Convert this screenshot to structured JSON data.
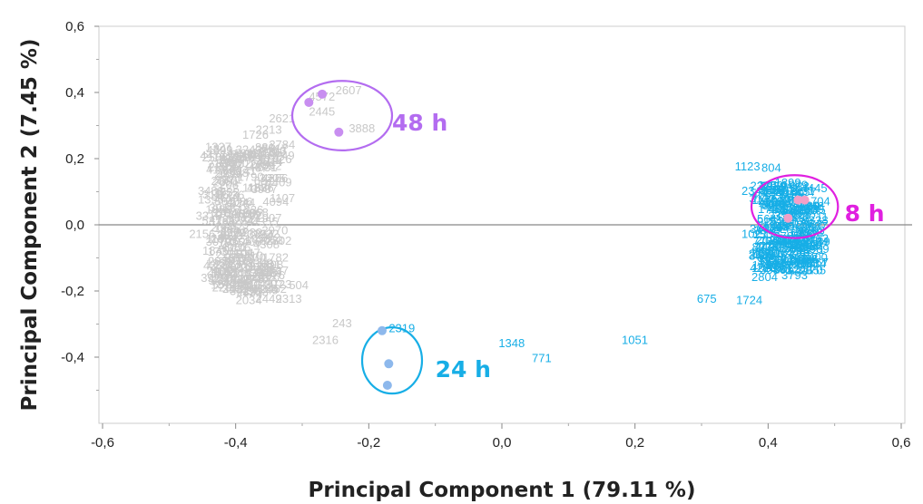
{
  "chart_data": {
    "type": "scatter",
    "xlabel": "Principal Component 1 (79.11 %)",
    "ylabel": "Principal Component 2 (7.45 %)",
    "xlim": [
      -0.6,
      0.6
    ],
    "ylim": [
      -0.6,
      0.6
    ],
    "x_ticks": [
      "-0,6",
      "-0,4",
      "-0,2",
      "0,0",
      "0,2",
      "0,4",
      "0,6"
    ],
    "y_ticks": [
      "0,6",
      "0,4",
      "0,2",
      "0,0",
      "-0,2",
      "-0,4"
    ],
    "grid": false,
    "zero_line": true,
    "colors": {
      "gray": "#c8c8c8",
      "blue": "#17aee6",
      "purple": "#b36cf0",
      "magenta": "#e020e0",
      "pink_point": "#f2a0c8",
      "purple_point": "#c88ef0",
      "blue_point": "#8db8ec"
    },
    "groups": [
      {
        "name": "48 h",
        "color": "#b36cf0",
        "ellipse": {
          "cx": -0.24,
          "cy": 0.33,
          "rx": 0.075,
          "ry": 0.105
        },
        "label_pos": [
          -0.165,
          0.31
        ]
      },
      {
        "name": "8 h",
        "color": "#e020e0",
        "ellipse": {
          "cx": 0.44,
          "cy": 0.055,
          "rx": 0.065,
          "ry": 0.095
        },
        "label_pos": [
          0.515,
          0.035
        ]
      },
      {
        "name": "24 h",
        "color": "#17aee6",
        "ellipse": {
          "cx": -0.165,
          "cy": -0.41,
          "rx": 0.045,
          "ry": 0.1
        },
        "label_pos": [
          -0.1,
          -0.435
        ]
      }
    ],
    "highlight_points": [
      {
        "x": -0.29,
        "y": 0.37,
        "color": "#c88ef0",
        "group": "48 h"
      },
      {
        "x": -0.27,
        "y": 0.395,
        "color": "#c88ef0",
        "group": "48 h"
      },
      {
        "x": -0.245,
        "y": 0.28,
        "color": "#c88ef0",
        "group": "48 h"
      },
      {
        "x": 0.43,
        "y": 0.02,
        "color": "#f2a0c8",
        "group": "8 h"
      },
      {
        "x": 0.445,
        "y": 0.075,
        "color": "#f2a0c8",
        "group": "8 h"
      },
      {
        "x": 0.455,
        "y": 0.075,
        "color": "#f2a0c8",
        "group": "8 h"
      },
      {
        "x": -0.18,
        "y": -0.32,
        "color": "#8db8ec",
        "group": "24 h"
      },
      {
        "x": -0.17,
        "y": -0.42,
        "color": "#8db8ec",
        "group": "24 h"
      },
      {
        "x": -0.172,
        "y": -0.485,
        "color": "#8db8ec",
        "group": "24 h"
      }
    ],
    "variable_labels": [
      {
        "text": "2607",
        "x": -0.25,
        "y": 0.395,
        "color": "#c8c8c8"
      },
      {
        "text": "4572",
        "x": -0.29,
        "y": 0.375,
        "color": "#c8c8c8"
      },
      {
        "text": "2445",
        "x": -0.29,
        "y": 0.33,
        "color": "#c8c8c8"
      },
      {
        "text": "3888",
        "x": -0.23,
        "y": 0.28,
        "color": "#c8c8c8"
      },
      {
        "text": "2621",
        "x": -0.35,
        "y": 0.31,
        "color": "#c8c8c8"
      },
      {
        "text": "2213",
        "x": -0.37,
        "y": 0.275,
        "color": "#c8c8c8"
      },
      {
        "text": "1726",
        "x": -0.39,
        "y": 0.26,
        "color": "#c8c8c8"
      },
      {
        "text": "3784",
        "x": -0.35,
        "y": 0.23,
        "color": "#c8c8c8"
      },
      {
        "text": "3242",
        "x": -0.4,
        "y": 0.215,
        "color": "#c8c8c8"
      },
      {
        "text": "1265",
        "x": -0.37,
        "y": 0.205,
        "color": "#c8c8c8"
      },
      {
        "text": "786",
        "x": -0.37,
        "y": 0.17,
        "color": "#c8c8c8"
      },
      {
        "text": "3888",
        "x": -0.43,
        "y": 0.175,
        "color": "#c8c8c8"
      },
      {
        "text": "2371",
        "x": -0.43,
        "y": 0.125,
        "color": "#c8c8c8"
      },
      {
        "text": "1163",
        "x": -0.39,
        "y": 0.1,
        "color": "#c8c8c8"
      },
      {
        "text": "3126",
        "x": -0.45,
        "y": 0.08,
        "color": "#c8c8c8"
      },
      {
        "text": "2244",
        "x": -0.41,
        "y": 0.055,
        "color": "#c8c8c8"
      },
      {
        "text": "1707",
        "x": -0.4,
        "y": 0.015,
        "color": "#c8c8c8"
      },
      {
        "text": "3318",
        "x": -0.46,
        "y": 0.015,
        "color": "#c8c8c8"
      },
      {
        "text": "597",
        "x": -0.41,
        "y": -0.035,
        "color": "#c8c8c8"
      },
      {
        "text": "2156",
        "x": -0.47,
        "y": -0.04,
        "color": "#c8c8c8"
      },
      {
        "text": "1845",
        "x": -0.45,
        "y": -0.09,
        "color": "#c8c8c8"
      },
      {
        "text": "3011",
        "x": -0.42,
        "y": -0.12,
        "color": "#c8c8c8"
      },
      {
        "text": "1927",
        "x": -0.44,
        "y": -0.155,
        "color": "#c8c8c8"
      },
      {
        "text": "2745",
        "x": -0.39,
        "y": -0.175,
        "color": "#c8c8c8"
      },
      {
        "text": "737",
        "x": -0.35,
        "y": -0.15,
        "color": "#c8c8c8"
      },
      {
        "text": "1087",
        "x": -0.37,
        "y": -0.17,
        "color": "#c8c8c8"
      },
      {
        "text": "504",
        "x": -0.32,
        "y": -0.195,
        "color": "#c8c8c8"
      },
      {
        "text": "2135",
        "x": -0.42,
        "y": -0.205,
        "color": "#c8c8c8"
      },
      {
        "text": "3253",
        "x": -0.39,
        "y": -0.215,
        "color": "#c8c8c8"
      },
      {
        "text": "2034",
        "x": -0.4,
        "y": -0.24,
        "color": "#c8c8c8"
      },
      {
        "text": "2449",
        "x": -0.37,
        "y": -0.235,
        "color": "#c8c8c8"
      },
      {
        "text": "2313",
        "x": -0.34,
        "y": -0.235,
        "color": "#c8c8c8"
      },
      {
        "text": "243",
        "x": -0.255,
        "y": -0.31,
        "color": "#c8c8c8"
      },
      {
        "text": "2316",
        "x": -0.285,
        "y": -0.36,
        "color": "#c8c8c8"
      },
      {
        "text": "2319",
        "x": -0.17,
        "y": -0.325,
        "color": "#17aee6"
      },
      {
        "text": "1348",
        "x": -0.005,
        "y": -0.37,
        "color": "#17aee6"
      },
      {
        "text": "771",
        "x": 0.045,
        "y": -0.415,
        "color": "#17aee6"
      },
      {
        "text": "1051",
        "x": 0.18,
        "y": -0.36,
        "color": "#17aee6"
      },
      {
        "text": "1123",
        "x": 0.35,
        "y": 0.165,
        "color": "#17aee6"
      },
      {
        "text": "804",
        "x": 0.39,
        "y": 0.16,
        "color": "#17aee6"
      },
      {
        "text": "1899",
        "x": 0.41,
        "y": 0.115,
        "color": "#17aee6"
      },
      {
        "text": "2343",
        "x": 0.36,
        "y": 0.09,
        "color": "#17aee6"
      },
      {
        "text": "1027",
        "x": 0.36,
        "y": -0.04,
        "color": "#17aee6"
      },
      {
        "text": "1082",
        "x": 0.4,
        "y": -0.14,
        "color": "#17aee6"
      },
      {
        "text": "2804",
        "x": 0.375,
        "y": -0.17,
        "color": "#17aee6"
      },
      {
        "text": "3793",
        "x": 0.42,
        "y": -0.165,
        "color": "#17aee6"
      },
      {
        "text": "675",
        "x": 0.293,
        "y": -0.235,
        "color": "#17aee6"
      },
      {
        "text": "1724",
        "x": 0.352,
        "y": -0.24,
        "color": "#17aee6"
      }
    ]
  }
}
